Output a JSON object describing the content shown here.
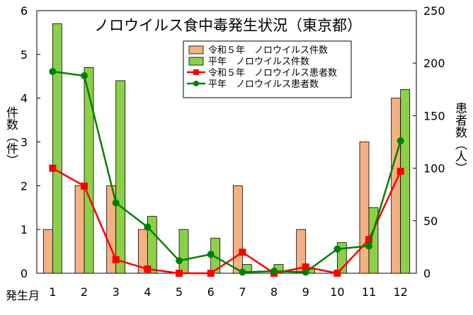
{
  "chart_data": {
    "type": "bar+line",
    "title": "ノロウイルス食中毒発生状況（東京都）",
    "xlabel": "発生月",
    "ylabel_left": "件数（件）",
    "ylabel_right": "患者数（人）",
    "categories": [
      "1",
      "2",
      "3",
      "4",
      "5",
      "6",
      "7",
      "8",
      "9",
      "10",
      "11",
      "12"
    ],
    "ylim_left": [
      0,
      6
    ],
    "yticks_left": [
      "0",
      "1",
      "2",
      "3",
      "4",
      "5",
      "6"
    ],
    "ylim_right": [
      0,
      250
    ],
    "yticks_right": [
      "0",
      "50",
      "100",
      "150",
      "200",
      "250"
    ],
    "grid": false,
    "legend_position": "top-right",
    "bar_series": [
      {
        "name": "令和５年　ノロウイルス件数",
        "axis": "left",
        "color": "#f4b183",
        "values": [
          1,
          2,
          2,
          1,
          0,
          0,
          2,
          0,
          1,
          0,
          3,
          4
        ]
      },
      {
        "name": "平年　ノロウイルス件数",
        "axis": "left",
        "color": "#8cd04a",
        "values": [
          5.7,
          4.7,
          4.4,
          1.3,
          1.0,
          0.8,
          0.2,
          0.2,
          0.1,
          0.7,
          1.5,
          4.2
        ]
      }
    ],
    "line_series": [
      {
        "name": "令和５年　ノロウイルス患者数",
        "axis": "right",
        "color": "#ff0000",
        "marker": "square",
        "values": [
          100,
          83,
          13,
          4,
          0,
          0,
          20,
          0,
          6,
          0,
          32,
          97
        ]
      },
      {
        "name": "平年　ノロウイルス患者数",
        "axis": "right",
        "color": "#008000",
        "marker": "circle",
        "values": [
          192,
          188,
          67,
          44,
          12,
          18,
          1,
          2,
          1,
          23,
          26,
          126
        ]
      }
    ]
  }
}
